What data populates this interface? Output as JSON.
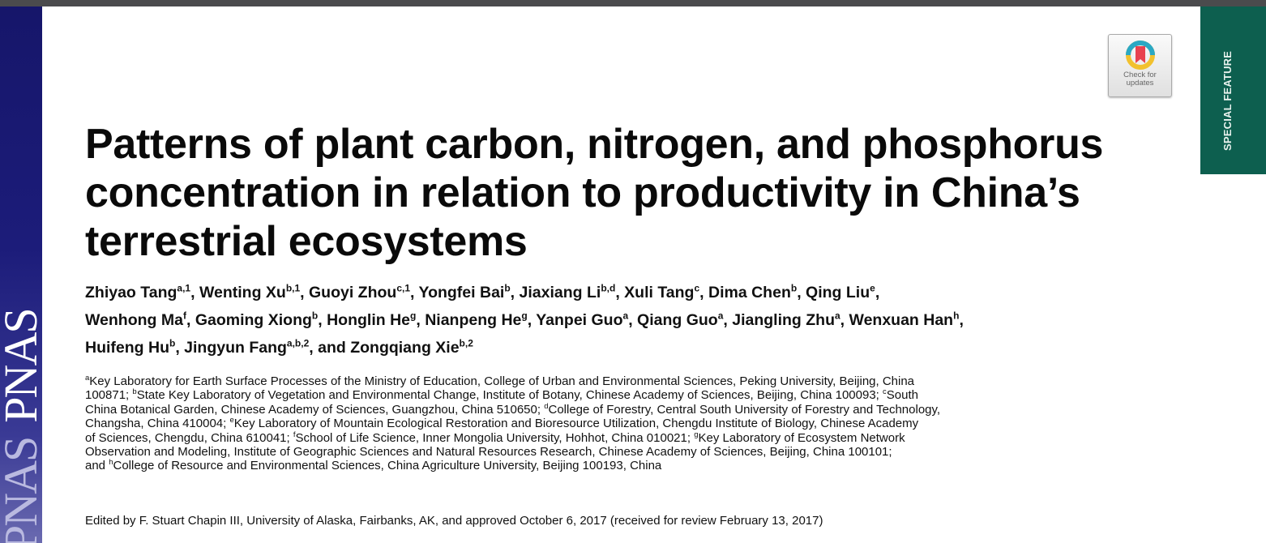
{
  "journal": {
    "logo_text_primary": "PNAS",
    "logo_text_repeat": "PNAS",
    "brand_color": "#1c1c7a"
  },
  "section_tab": {
    "label": "SPECIAL FEATURE",
    "color": "#0d5f4f"
  },
  "check_updates": {
    "line1": "Check for",
    "line2": "updates",
    "icon": "bookmark-ring-icon"
  },
  "title_lines": [
    "Patterns of plant carbon, nitrogen, and phosphorus",
    "concentration in relation to productivity in China’s",
    "terrestrial ecosystems"
  ],
  "author_lines": [
    [
      {
        "n": "Zhiyao Tang",
        "s": "a,1"
      },
      {
        "n": "Wenting Xu",
        "s": "b,1"
      },
      {
        "n": "Guoyi Zhou",
        "s": "c,1"
      },
      {
        "n": "Yongfei Bai",
        "s": "b"
      },
      {
        "n": "Jiaxiang Li",
        "s": "b,d"
      },
      {
        "n": "Xuli Tang",
        "s": "c"
      },
      {
        "n": "Dima Chen",
        "s": "b"
      },
      {
        "n": "Qing Liu",
        "s": "e"
      }
    ],
    [
      {
        "n": "Wenhong Ma",
        "s": "f"
      },
      {
        "n": "Gaoming Xiong",
        "s": "b"
      },
      {
        "n": "Honglin He",
        "s": "g"
      },
      {
        "n": "Nianpeng He",
        "s": "g"
      },
      {
        "n": "Yanpei Guo",
        "s": "a"
      },
      {
        "n": "Qiang Guo",
        "s": "a"
      },
      {
        "n": "Jiangling Zhu",
        "s": "a"
      },
      {
        "n": "Wenxuan Han",
        "s": "h"
      }
    ],
    [
      {
        "n": "Huifeng Hu",
        "s": "b"
      },
      {
        "n": "Jingyun Fang",
        "s": "a,b,2"
      },
      {
        "n": "and Zongqiang Xie",
        "s": "b,2",
        "last": true
      }
    ]
  ],
  "affiliation_lines": [
    [
      [
        "a",
        ""
      ],
      [
        "",
        "Key Laboratory for Earth Surface Processes of the Ministry of Education, College of Urban and Environmental Sciences, Peking University, Beijing, China"
      ]
    ],
    [
      [
        "",
        "100871; "
      ],
      [
        "b",
        ""
      ],
      [
        "",
        "State Key Laboratory of Vegetation and Environmental Change, Institute of Botany, Chinese Academy of Sciences, Beijing, China 100093; "
      ],
      [
        "c",
        ""
      ],
      [
        "",
        "South"
      ]
    ],
    [
      [
        "",
        "China Botanical Garden, Chinese Academy of Sciences, Guangzhou, China 510650; "
      ],
      [
        "d",
        ""
      ],
      [
        "",
        "College of Forestry, Central South University of Forestry and Technology,"
      ]
    ],
    [
      [
        "",
        "Changsha, China 410004; "
      ],
      [
        "e",
        ""
      ],
      [
        "",
        "Key Laboratory of Mountain Ecological Restoration and Bioresource Utilization, Chengdu Institute of Biology, Chinese Academy"
      ]
    ],
    [
      [
        "",
        "of Sciences, Chengdu, China 610041; "
      ],
      [
        "f",
        ""
      ],
      [
        "",
        "School of Life Science, Inner Mongolia University, Hohhot, China 010021; "
      ],
      [
        "g",
        ""
      ],
      [
        "",
        "Key Laboratory of Ecosystem Network"
      ]
    ],
    [
      [
        "",
        "Observation and Modeling, Institute of Geographic Sciences and Natural Resources Research, Chinese Academy of Sciences, Beijing, China 100101;"
      ]
    ],
    [
      [
        "",
        "and "
      ],
      [
        "h",
        ""
      ],
      [
        "",
        "College of Resource and Environmental Sciences, China Agriculture University, Beijing 100193, China"
      ]
    ]
  ],
  "edited_by": "Edited by F. Stuart Chapin III, University of Alaska, Fairbanks, AK, and approved October 6, 2017 (received for review February 13, 2017)"
}
